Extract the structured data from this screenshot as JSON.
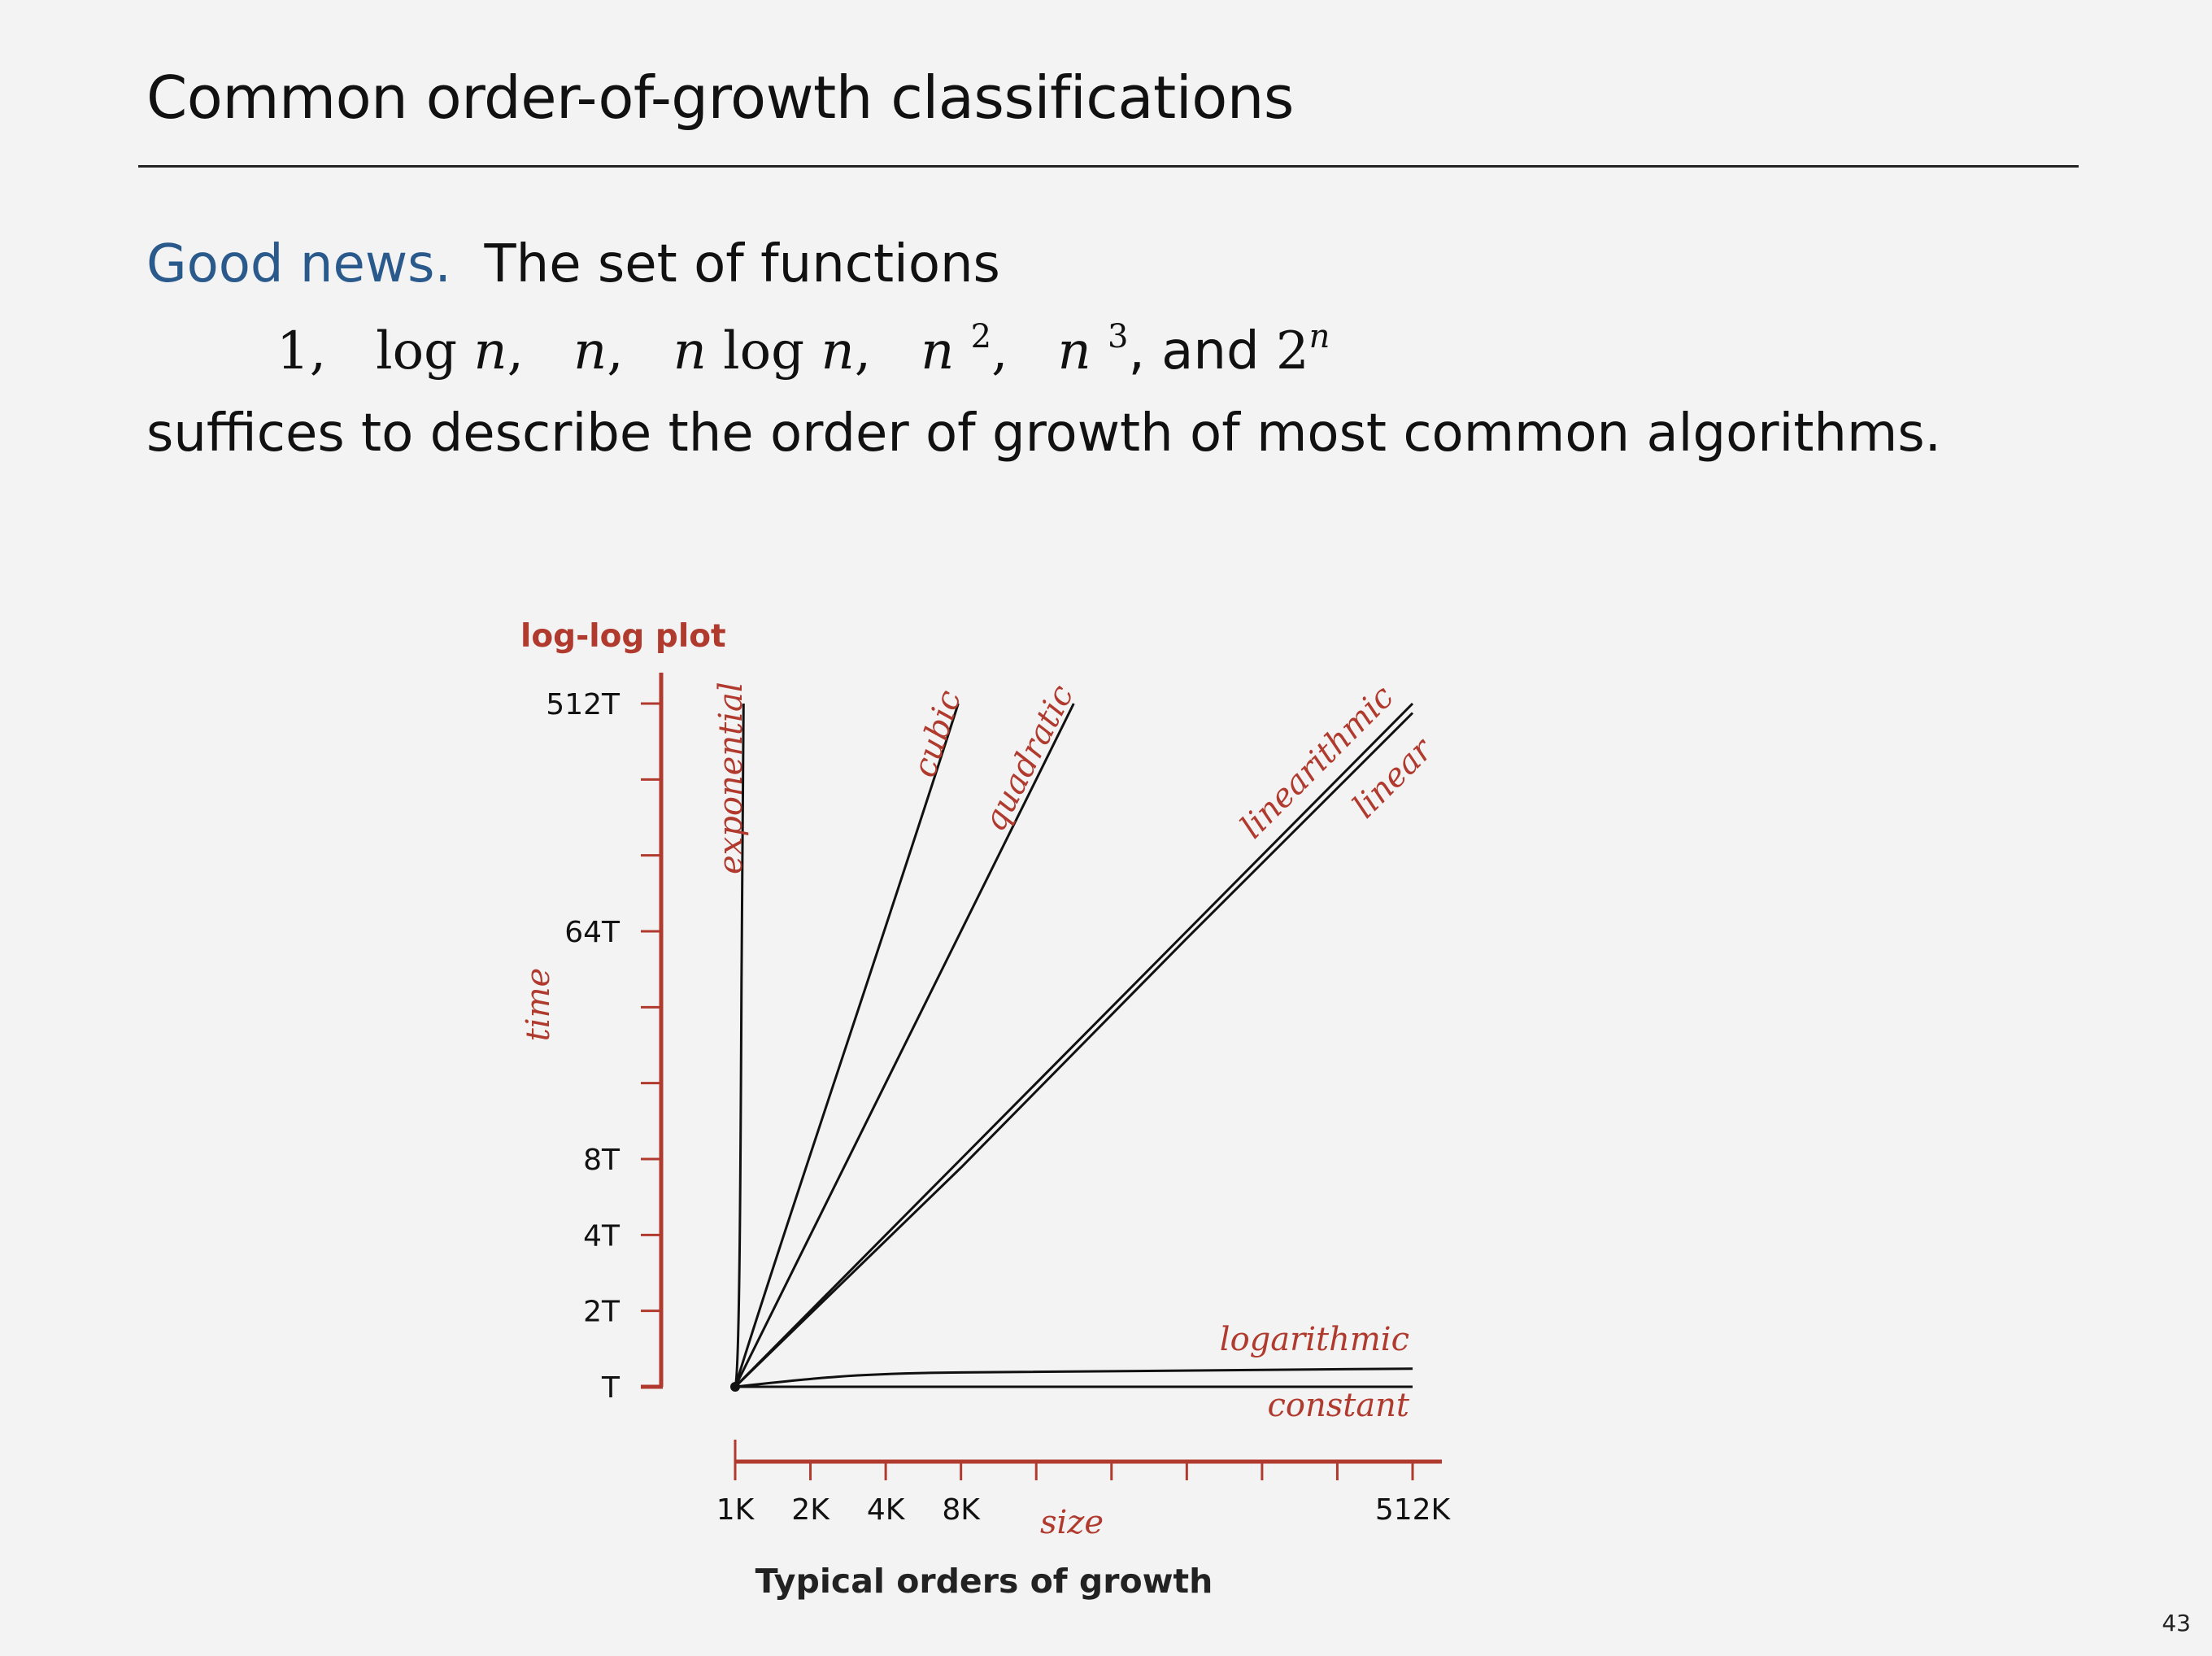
{
  "slide": {
    "title": "Common order-of-growth classifications",
    "good_news_label": "Good news.",
    "line1_text": "The set of functions",
    "formula": {
      "f1": "1,",
      "f2_log": "log",
      "f2_n": "n",
      "f2_comma": ",",
      "f3_n": "n",
      "f3_comma": ",",
      "f4_n": "n",
      "f4_log": "log",
      "f4_n2": "n",
      "f4_comma": ",",
      "f5_n": "n",
      "f5_exp": "2",
      "f5_comma": ",",
      "f6_n": "n",
      "f6_exp": "3",
      "and_text": ", and",
      "f7_base": "2",
      "f7_exp": "n"
    },
    "line3_text": "suffices to describe the order of growth of most common algorithms.",
    "page_number": "43"
  },
  "chart_data": {
    "type": "line",
    "title": "log-log plot",
    "caption": "Typical orders of growth",
    "xlabel": "size",
    "ylabel": "time",
    "scale": "log-log",
    "x_ticks": [
      1,
      2,
      4,
      8,
      16,
      32,
      64,
      128,
      256,
      512
    ],
    "x_tick_labels": [
      "1K",
      "2K",
      "4K",
      "8K",
      "",
      "",
      "",
      "",
      "",
      "512K"
    ],
    "y_ticks": [
      1,
      2,
      4,
      8,
      16,
      32,
      64,
      128,
      256,
      512
    ],
    "y_tick_labels": [
      "T",
      "2T",
      "4T",
      "8T",
      "",
      "",
      "64T",
      "",
      "",
      "512T"
    ],
    "xlim": [
      1,
      512
    ],
    "ylim": [
      1,
      512
    ],
    "grid": false,
    "legend": "none",
    "axis_color": "#b03a2e",
    "label_color": "#b03a2e",
    "line_color": "#111111",
    "series": [
      {
        "name": "exponential",
        "x": [
          1,
          1.02,
          1.05,
          1.1,
          1.2,
          1.4
        ],
        "y": [
          1,
          8,
          40,
          150,
          400,
          512
        ]
      },
      {
        "name": "cubic",
        "x": [
          1,
          2,
          4,
          8
        ],
        "y": [
          1,
          8,
          64,
          512
        ]
      },
      {
        "name": "quadratic",
        "x": [
          1,
          4,
          16,
          22.6
        ],
        "y": [
          1,
          16,
          256,
          512
        ]
      },
      {
        "name": "linearithmic",
        "x": [
          1,
          8,
          64,
          512
        ],
        "y": [
          1,
          8,
          64,
          512
        ]
      },
      {
        "name": "linear",
        "x": [
          1,
          8,
          64,
          512
        ],
        "y": [
          1,
          7.4,
          60,
          470
        ]
      },
      {
        "name": "logarithmic",
        "x": [
          1,
          2,
          4,
          8,
          64,
          512
        ],
        "y": [
          1,
          1.06,
          1.11,
          1.13,
          1.16,
          1.18
        ]
      },
      {
        "name": "constant",
        "x": [
          1,
          512
        ],
        "y": [
          1,
          1
        ]
      }
    ]
  }
}
